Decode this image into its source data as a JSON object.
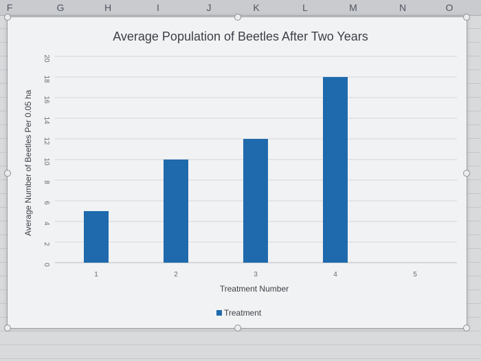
{
  "spreadsheet": {
    "columns": [
      "F",
      "G",
      "H",
      "I",
      "J",
      "K",
      "L",
      "M",
      "N",
      "O"
    ]
  },
  "chart_data": {
    "type": "bar",
    "title": "Average Population of Beetles After Two Years",
    "xlabel": "Treatment Number",
    "ylabel": "Average Number of Beetles Per 0.05 ha",
    "x_ticks": [
      "1",
      "2",
      "3",
      "4",
      "5"
    ],
    "categories": [
      "1",
      "2",
      "3",
      "4"
    ],
    "series": [
      {
        "name": "Treatment",
        "color": "#1f6aad",
        "values": [
          5,
          10,
          12,
          18
        ]
      }
    ],
    "y_ticks": [
      "0",
      "2",
      "4",
      "6",
      "8",
      "10",
      "12",
      "14",
      "16",
      "18",
      "20"
    ],
    "ylim": [
      0,
      20
    ],
    "grid": true,
    "legend_position": "bottom"
  }
}
